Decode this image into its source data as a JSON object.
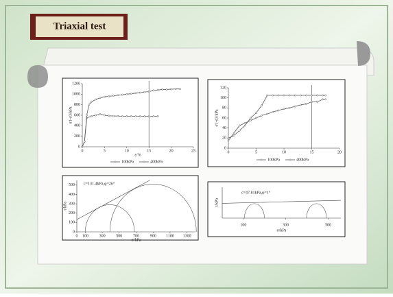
{
  "slide": {
    "title": "Triaxial test"
  },
  "chart_data": [
    {
      "type": "line",
      "y_label": "σ1-σ3/kPa",
      "x_label": "ε/%",
      "xlim": [
        0,
        25
      ],
      "xticks": [
        0,
        5,
        10,
        15,
        20,
        25
      ],
      "ylim": [
        0,
        1200
      ],
      "yticks": [
        0,
        200,
        400,
        600,
        800,
        1000,
        1200
      ],
      "reference_x": 15,
      "series": [
        {
          "name": "100kPa",
          "color": "#555555",
          "x": [
            0,
            0.5,
            1,
            2,
            3,
            4,
            5,
            6,
            7,
            8,
            9,
            10,
            11,
            12,
            13,
            14,
            15,
            16,
            17
          ],
          "values": [
            0,
            100,
            550,
            580,
            600,
            620,
            600,
            590,
            585,
            585,
            580,
            580,
            580,
            580,
            580,
            580,
            580,
            580,
            580
          ]
        },
        {
          "name": "400kPa",
          "color": "#555555",
          "x": [
            0,
            0.5,
            1,
            1.5,
            2,
            3,
            4,
            5,
            6,
            7,
            8,
            9,
            10,
            11,
            12,
            13,
            14,
            15,
            16,
            17,
            18,
            19,
            20,
            21,
            22
          ],
          "values": [
            0,
            100,
            600,
            800,
            850,
            900,
            930,
            950,
            960,
            970,
            980,
            990,
            1000,
            1010,
            1020,
            1030,
            1040,
            1050,
            1070,
            1080,
            1090,
            1090,
            1095,
            1100,
            1100
          ]
        }
      ]
    },
    {
      "type": "line",
      "y_label": "σ1-σ3/kPa",
      "xlim": [
        0,
        20
      ],
      "xticks": [
        0,
        5,
        10,
        15,
        20
      ],
      "ylim": [
        0,
        120
      ],
      "yticks": [
        0,
        20,
        40,
        60,
        80,
        100,
        120
      ],
      "reference_x": 15,
      "series": [
        {
          "name": "100kPa",
          "color": "#555555",
          "x": [
            0,
            1,
            2,
            3,
            4,
            5,
            6,
            7,
            8,
            9,
            10,
            11,
            12,
            13,
            14,
            15,
            16,
            17,
            17.5
          ],
          "values": [
            15,
            30,
            45,
            50,
            55,
            60,
            65,
            68,
            72,
            75,
            78,
            80,
            83,
            86,
            88,
            92,
            92,
            97,
            97
          ]
        },
        {
          "name": "400kPa",
          "color": "#555555",
          "x": [
            0,
            1,
            2,
            3,
            4,
            5,
            6,
            7,
            8,
            9,
            10,
            11,
            12,
            13,
            14,
            15,
            16,
            17,
            17.5
          ],
          "values": [
            20,
            25,
            35,
            45,
            60,
            70,
            85,
            105,
            105,
            105,
            105,
            105,
            105,
            105,
            105,
            105,
            105,
            105,
            105
          ]
        }
      ]
    },
    {
      "type": "mohr",
      "annotation": "c=131.4kPa,φ=26°",
      "y_label": "τ/kPa",
      "x_label": "σ/kPa",
      "xlim": [
        0,
        1400
      ],
      "xticks": [
        0,
        100,
        300,
        500,
        700,
        900,
        1100,
        1300
      ],
      "ylim": [
        0,
        550
      ],
      "yticks": [
        0,
        100,
        200,
        300,
        400,
        500
      ],
      "envelope": {
        "intercept": 131.4,
        "angle": 26
      },
      "circles": [
        {
          "center": 390,
          "radius": 290
        },
        {
          "center": 900,
          "radius": 510
        }
      ]
    },
    {
      "type": "mohr",
      "annotation": "c=47.81kPa,φ=1°",
      "y_label": "τ/kPa",
      "x_label": "σ/kPa",
      "xlim": [
        0,
        560
      ],
      "xticks": [
        100,
        300,
        500
      ],
      "ylim": [
        0,
        100
      ],
      "envelope": {
        "intercept": 47.81,
        "angle": 1
      },
      "circles": [
        {
          "center": 152,
          "radius": 47
        },
        {
          "center": 445,
          "radius": 47
        }
      ]
    }
  ]
}
